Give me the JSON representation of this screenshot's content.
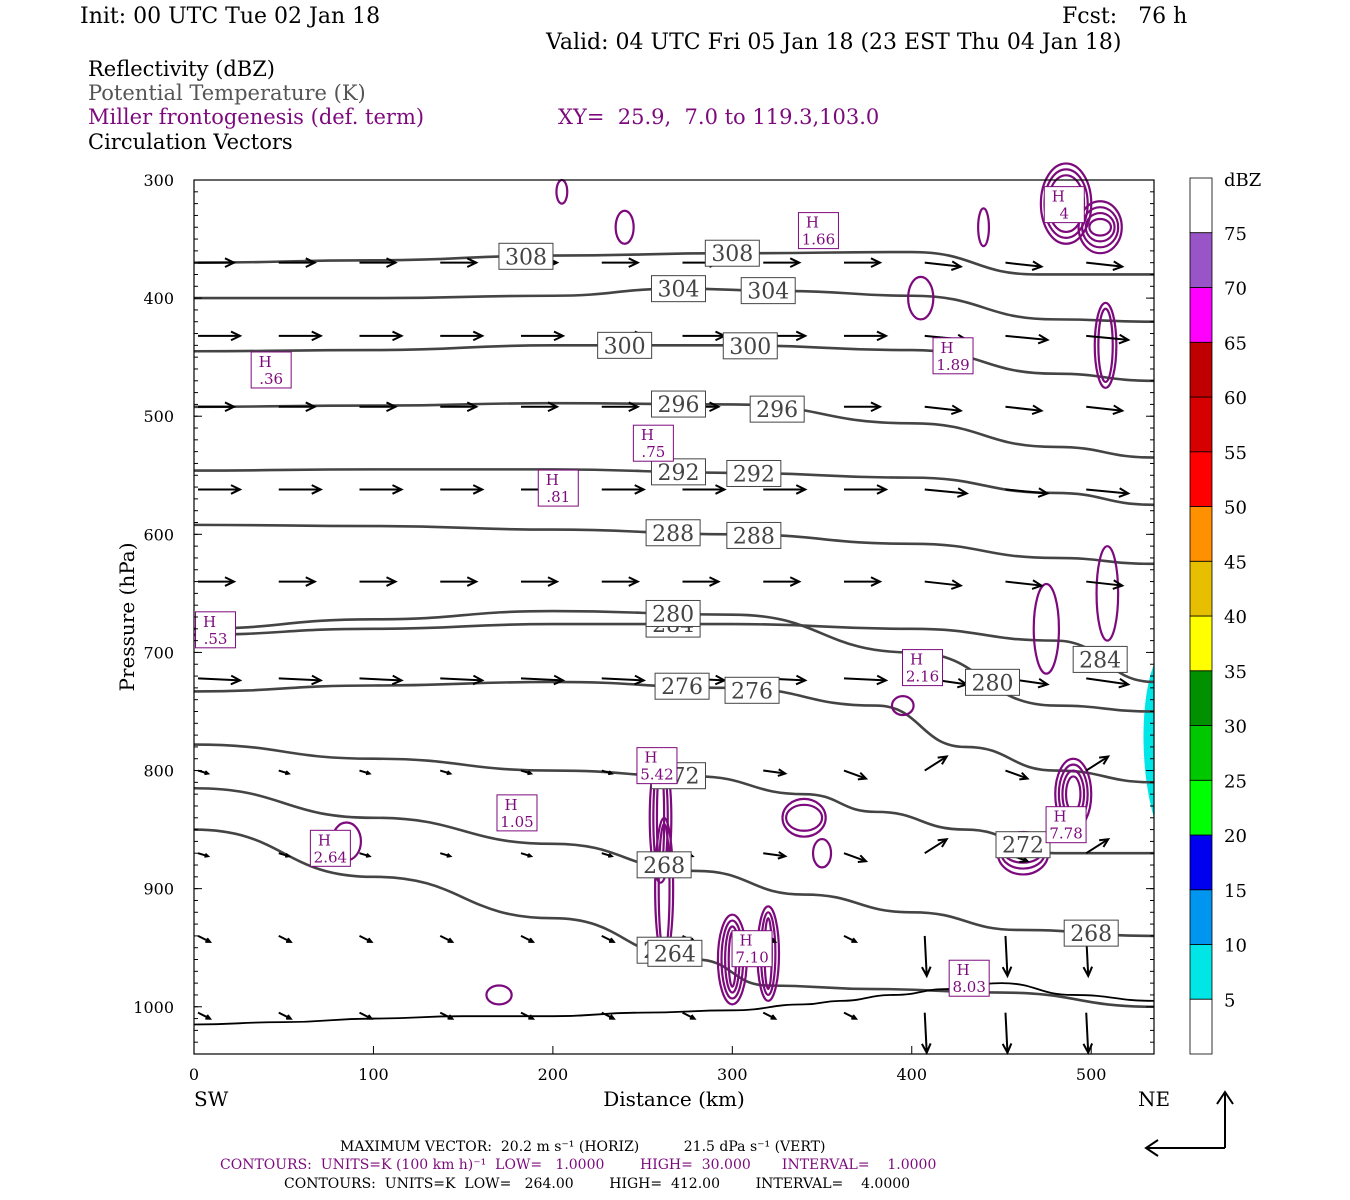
{
  "header": {
    "init": "Init: 00 UTC Tue 02 Jan 18",
    "fcst": "Fcst:   76 h",
    "valid": "Valid: 04 UTC Fri 05 Jan 18 (23 EST Thu 04 Jan 18)",
    "field1": "Reflectivity (dBZ)",
    "field2": "Potential Temperature (K)",
    "field3": "Miller frontogenesis (def. term)",
    "xy": "XY=  25.9,  7.0 to 119.3,103.0",
    "field4": "Circulation Vectors"
  },
  "footer": {
    "max_vector": "MAXIMUM VECTOR:  20.2 m s⁻¹ (HORIZ)          21.5 dPa s⁻¹ (VERT)",
    "contours1": "CONTOURS:  UNITS=K (100 km h)⁻¹  LOW=   1.0000        HIGH=  30.000       INTERVAL=    1.0000",
    "contours2": "CONTOURS:  UNITS=K  LOW=   264.00        HIGH=  412.00        INTERVAL=    4.0000"
  },
  "colors": {
    "theta": "#444444",
    "frontogenesis": "#7d0a7d",
    "vector": "#000000",
    "reflectivity": "#33d6e6"
  },
  "chart_data": {
    "type": "cross-section",
    "xlabel": "Distance (km)",
    "ylabel": "Pressure (hPa)",
    "xlim": [
      0,
      535
    ],
    "ylim": [
      1040,
      300
    ],
    "x_ticks": [
      "0",
      "100",
      "200",
      "300",
      "400",
      "500"
    ],
    "y_ticks": [
      "300",
      "400",
      "500",
      "600",
      "700",
      "800",
      "900",
      "1000"
    ],
    "x_tick_values": [
      0,
      100,
      200,
      300,
      400,
      500
    ],
    "y_tick_values": [
      300,
      400,
      500,
      600,
      700,
      800,
      900,
      1000
    ],
    "left_end_label": "SW",
    "right_end_label": "NE",
    "colorbar": {
      "title": "dBZ",
      "levels": [
        "5",
        "10",
        "15",
        "20",
        "25",
        "30",
        "35",
        "40",
        "45",
        "50",
        "55",
        "60",
        "65",
        "70",
        "75"
      ],
      "colors": [
        "#00e6e6",
        "#0096f0",
        "#0000f0",
        "#00ff00",
        "#00c800",
        "#009000",
        "#ffff00",
        "#e6c000",
        "#ff9000",
        "#ff0000",
        "#d60000",
        "#c00000",
        "#ff00ff",
        "#9955c8"
      ]
    },
    "theta_isentropes": [
      {
        "label": "308",
        "x": [
          0,
          100,
          200,
          300,
          400,
          470,
          535
        ],
        "p": [
          370,
          368,
          364,
          362,
          361,
          380,
          380
        ]
      },
      {
        "label": "304",
        "x": [
          0,
          100,
          200,
          270,
          330,
          400,
          480,
          535
        ],
        "p": [
          400,
          400,
          398,
          392,
          394,
          398,
          418,
          420
        ]
      },
      {
        "label": "300",
        "x": [
          0,
          100,
          200,
          300,
          400,
          480,
          535
        ],
        "p": [
          445,
          444,
          440,
          440,
          444,
          464,
          470
        ]
      },
      {
        "label": "296",
        "x": [
          0,
          100,
          200,
          300,
          400,
          480,
          535
        ],
        "p": [
          492,
          491,
          489,
          490,
          506,
          526,
          535
        ]
      },
      {
        "label": "292",
        "x": [
          0,
          100,
          200,
          300,
          400,
          480,
          535
        ],
        "p": [
          546,
          545,
          545,
          548,
          552,
          565,
          575
        ]
      },
      {
        "label": "288",
        "x": [
          0,
          100,
          200,
          300,
          400,
          480,
          535
        ],
        "p": [
          592,
          593,
          596,
          600,
          608,
          620,
          625
        ]
      },
      {
        "label": "284",
        "x": [
          0,
          100,
          200,
          300,
          400,
          480,
          535
        ],
        "p": [
          685,
          680,
          676,
          676,
          680,
          690,
          725
        ]
      },
      {
        "label": "280",
        "x": [
          0,
          100,
          200,
          300,
          400,
          480,
          535
        ],
        "p": [
          680,
          672,
          665,
          668,
          700,
          745,
          750
        ]
      },
      {
        "label": "276",
        "x": [
          0,
          100,
          200,
          300,
          380,
          430,
          480,
          535
        ],
        "p": [
          733,
          728,
          725,
          730,
          745,
          780,
          800,
          810
        ]
      },
      {
        "label": "272",
        "x": [
          0,
          100,
          200,
          280,
          340,
          380,
          430,
          480,
          535
        ],
        "p": [
          778,
          790,
          800,
          805,
          820,
          835,
          850,
          870,
          870
        ]
      },
      {
        "label": "268",
        "x": [
          0,
          100,
          200,
          280,
          340,
          400,
          460,
          535
        ],
        "p": [
          815,
          840,
          862,
          885,
          905,
          920,
          935,
          940
        ]
      },
      {
        "label": "264",
        "x": [
          0,
          100,
          200,
          280,
          320,
          380,
          450,
          535
        ],
        "p": [
          850,
          890,
          925,
          960,
          982,
          985,
          988,
          1000
        ]
      }
    ],
    "frontogenesis_maxima": [
      {
        "label": "H",
        "value": ".36",
        "x": 43,
        "p": 460
      },
      {
        "label": "H",
        "value": ".53",
        "x": 12,
        "p": 680
      },
      {
        "label": "H",
        "value": ".81",
        "x": 203,
        "p": 560
      },
      {
        "label": "H",
        "value": ".75",
        "x": 256,
        "p": 522
      },
      {
        "label": "H",
        "value": "1.66",
        "x": 348,
        "p": 342
      },
      {
        "label": "H",
        "value": "1.89",
        "x": 423,
        "p": 448
      },
      {
        "label": "H",
        "value": "2.64",
        "x": 76,
        "p": 865
      },
      {
        "label": "H",
        "value": "1.05",
        "x": 180,
        "p": 835
      },
      {
        "label": "H",
        "value": "5.42",
        "x": 258,
        "p": 795
      },
      {
        "label": "H",
        "value": "2.16",
        "x": 406,
        "p": 712
      },
      {
        "label": "H",
        "value": "7.10",
        "x": 311,
        "p": 950
      },
      {
        "label": "H",
        "value": "8.03",
        "x": 432,
        "p": 975
      },
      {
        "label": "H",
        "value": "7.78",
        "x": 486,
        "p": 845
      },
      {
        "label": "H",
        "value": "4",
        "x": 485,
        "p": 320
      }
    ],
    "terrain_p": [
      1015,
      1013,
      1010,
      1008,
      1008,
      1005,
      1003,
      998,
      995,
      990,
      985,
      980,
      990,
      995
    ],
    "terrain_x": [
      0,
      50,
      100,
      150,
      200,
      250,
      300,
      340,
      360,
      390,
      420,
      450,
      490,
      535
    ]
  }
}
